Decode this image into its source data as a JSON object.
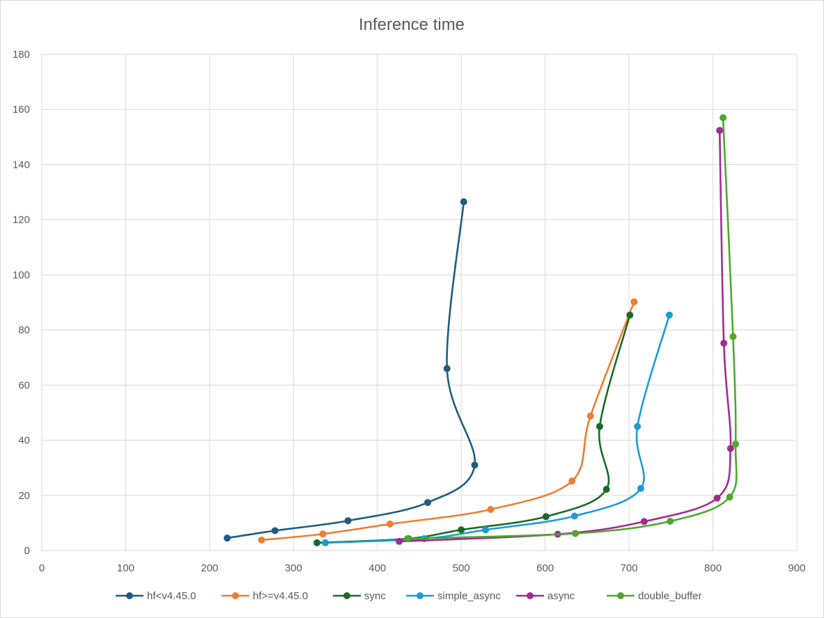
{
  "chart_data": {
    "type": "scatter",
    "title": "Inference time",
    "xlabel": "",
    "ylabel": "",
    "xlim": [
      0,
      900
    ],
    "ylim": [
      0,
      180
    ],
    "x_ticks": [
      0,
      100,
      200,
      300,
      400,
      500,
      600,
      700,
      800,
      900
    ],
    "y_ticks": [
      0,
      20,
      40,
      60,
      80,
      100,
      120,
      140,
      160,
      180
    ],
    "grid": true,
    "smoothed_lines": true,
    "legend_position": "bottom",
    "series": [
      {
        "name": "hf<v4.45.0",
        "color": "#1f5c7f",
        "points": [
          [
            221,
            4.5
          ],
          [
            278,
            7.2
          ],
          [
            365,
            10.8
          ],
          [
            460,
            17.4
          ],
          [
            516,
            31
          ],
          [
            483,
            66
          ],
          [
            503,
            126.5
          ]
        ]
      },
      {
        "name": "hf>=v4.45.0",
        "color": "#ed7d31",
        "points": [
          [
            262,
            3.8
          ],
          [
            335,
            6
          ],
          [
            415,
            9.6
          ],
          [
            535,
            14.9
          ],
          [
            632,
            25.2
          ],
          [
            654,
            48.8
          ],
          [
            706,
            90.2
          ]
        ]
      },
      {
        "name": "sync",
        "color": "#196b24",
        "points": [
          [
            328,
            2.8
          ],
          [
            437,
            4.3
          ],
          [
            500,
            7.5
          ],
          [
            601,
            12.3
          ],
          [
            673,
            22.2
          ],
          [
            665,
            45
          ],
          [
            701,
            85.4
          ]
        ]
      },
      {
        "name": "simple_async",
        "color": "#1a9bd7",
        "points": [
          [
            338,
            2.8
          ],
          [
            456,
            4.3
          ],
          [
            529,
            7.5
          ],
          [
            635,
            12.5
          ],
          [
            714,
            22.5
          ],
          [
            710,
            45
          ],
          [
            748,
            85.4
          ]
        ]
      },
      {
        "name": "async",
        "color": "#a02b93",
        "points": [
          [
            426,
            3.3
          ],
          [
            615,
            5.9
          ],
          [
            718,
            10.5
          ],
          [
            805,
            19
          ],
          [
            821,
            37
          ],
          [
            813,
            75.2
          ],
          [
            808,
            152.4
          ]
        ]
      },
      {
        "name": "double_buffer",
        "color": "#4ea72e",
        "points": [
          [
            436,
            4.3
          ],
          [
            636,
            6.2
          ],
          [
            749,
            10.6
          ],
          [
            820,
            19.4
          ],
          [
            827,
            38.6
          ],
          [
            824,
            77.6
          ],
          [
            812,
            157
          ]
        ]
      }
    ]
  }
}
